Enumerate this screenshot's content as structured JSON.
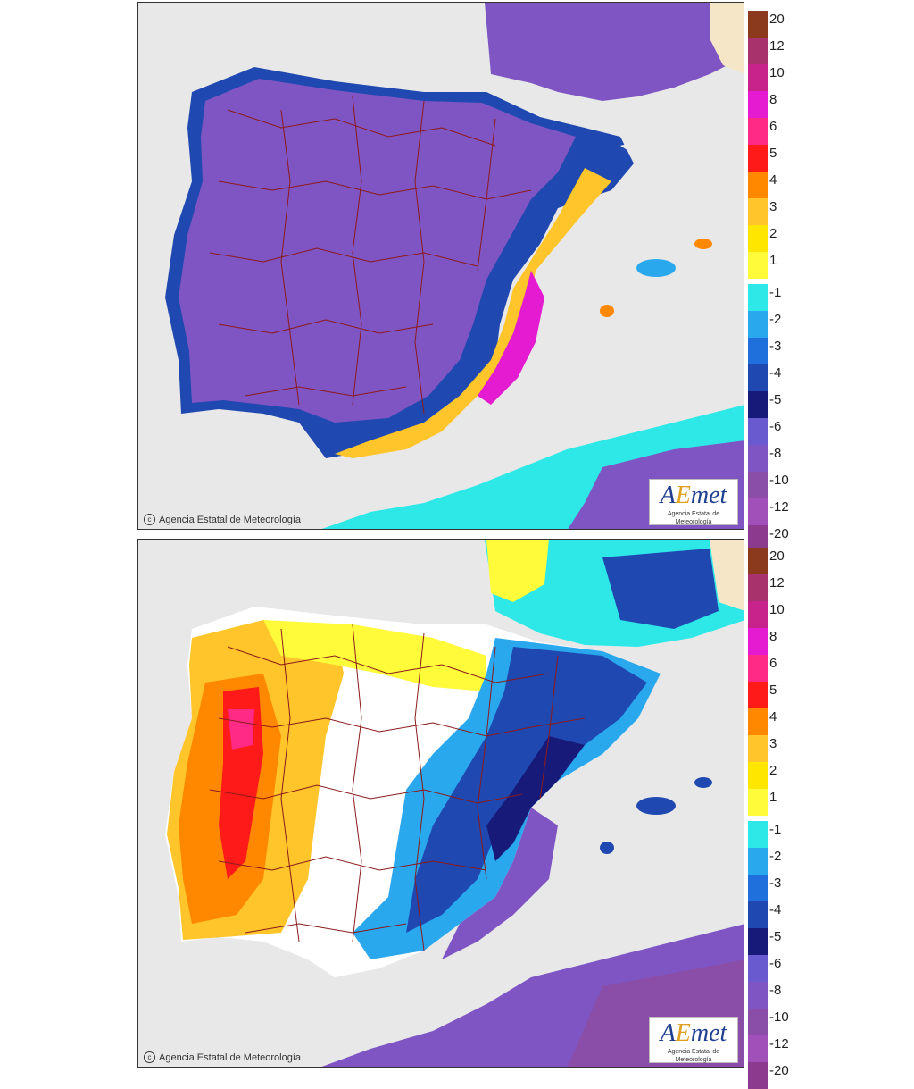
{
  "legend": {
    "labels": [
      "20",
      "12",
      "10",
      "8",
      "6",
      "5",
      "4",
      "3",
      "2",
      "1",
      "-1",
      "-2",
      "-3",
      "-4",
      "-5",
      "-6",
      "-8",
      "-10",
      "-12",
      "-20"
    ],
    "colors": [
      "#8b3a1e",
      "#a8326b",
      "#c8238a",
      "#e41bd0",
      "#ff2a86",
      "#ff1a1a",
      "#ff8800",
      "#ffc52a",
      "#ffe600",
      "#fffb3a",
      "#2ee8e8",
      "#2aa8ee",
      "#1f6fdc",
      "#1f48b0",
      "#181a7a",
      "#6a5ad0",
      "#7f55c4",
      "#8a4ea8",
      "#a050b8",
      "#8b3a8e"
    ]
  },
  "panels": [
    {
      "id": "top",
      "credit": "Agencia Estatal de Meteorología",
      "logo_text": "AEmet",
      "logo_sub": "Agencia Estatal de Meteorología"
    },
    {
      "id": "bottom",
      "credit": "Agencia Estatal de Meteorología",
      "logo_text": "AEmet",
      "logo_sub": "Agencia Estatal de Meteorología"
    }
  ]
}
